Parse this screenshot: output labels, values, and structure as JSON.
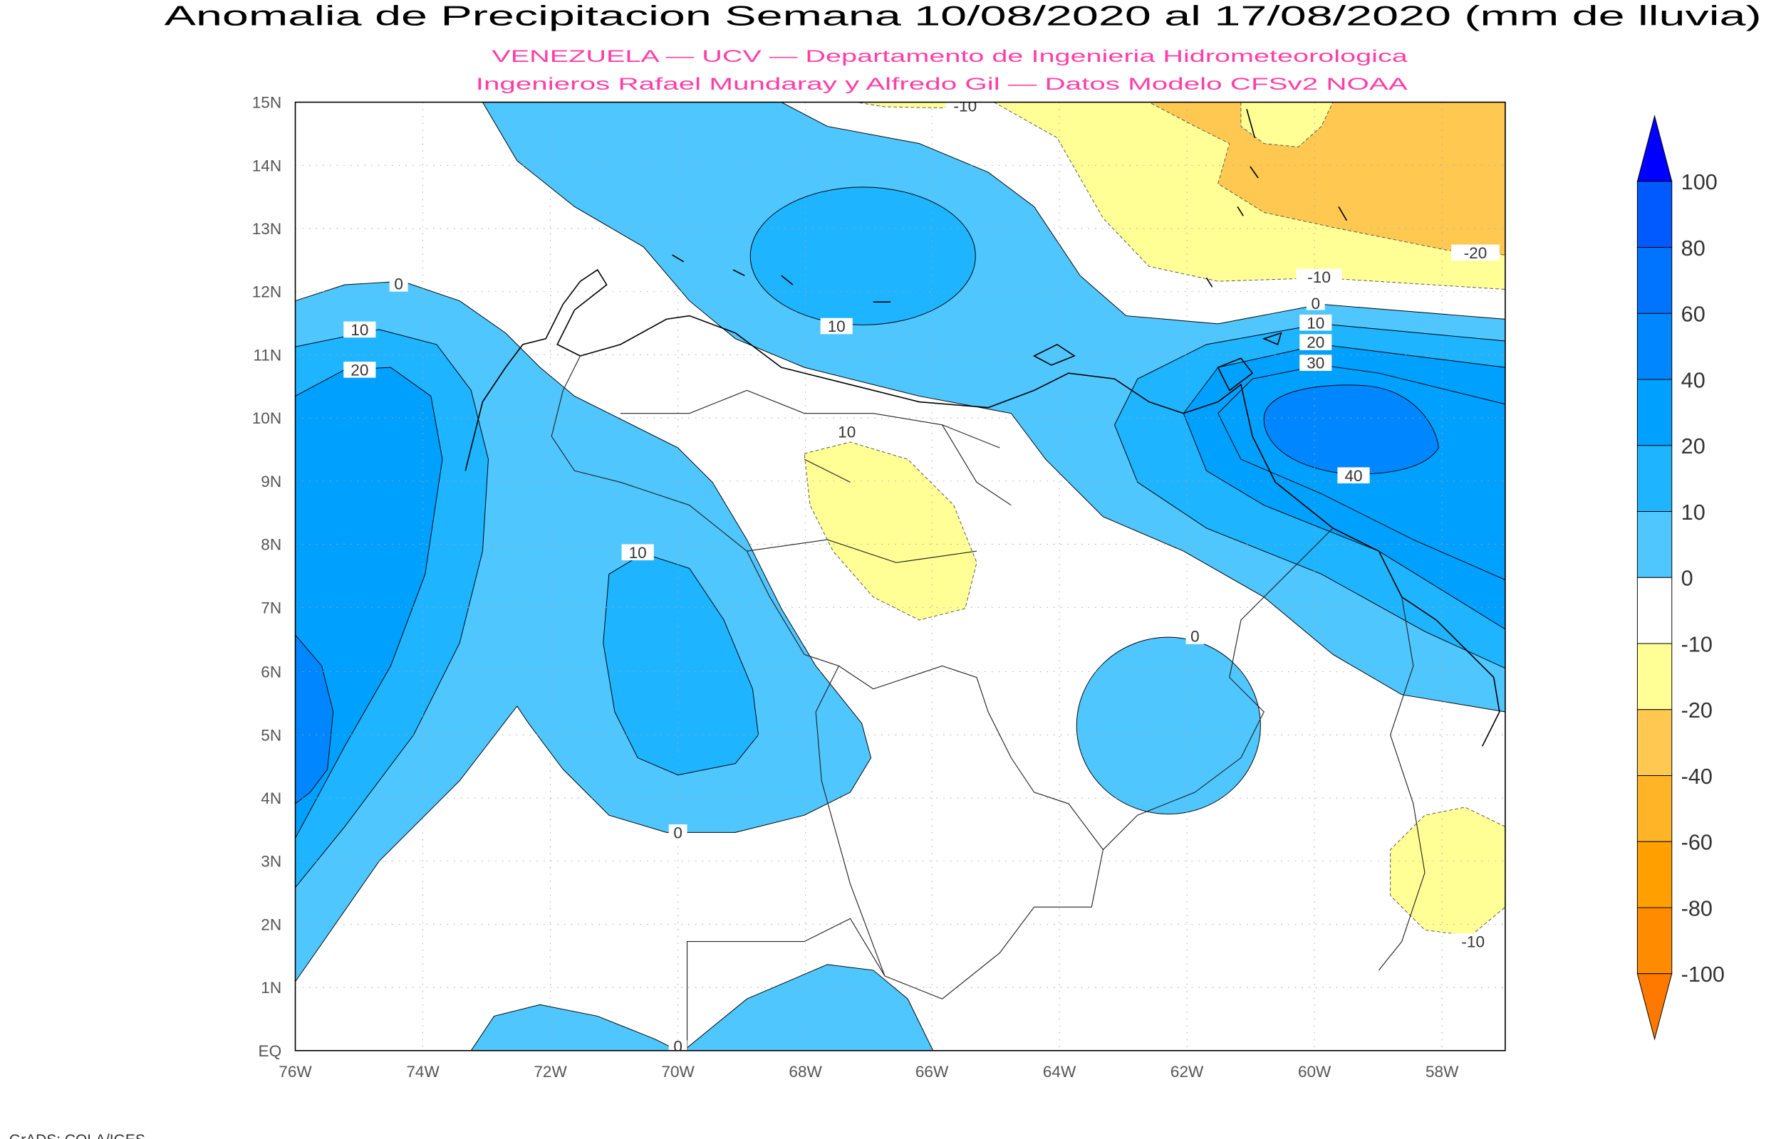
{
  "title": "Anomalia de Precipitacion Semana 10/08/2020 al 17/08/2020 (mm de lluvia)",
  "subtitle_line1": "VENEZUELA — UCV — Departamento de Ingenieria Hidrometeorologica",
  "subtitle_line2": "Ingenieros Rafael Mundaray y Alfredo Gil — Datos Modelo CFSv2 NOAA",
  "footer": "GrADS: COLA/IGES",
  "map": {
    "variable": "Precipitation anomaly (mm)",
    "lon_range": [
      -76,
      -57
    ],
    "lat_range": [
      0,
      15
    ],
    "lat_ticks": [
      "15N",
      "14N",
      "13N",
      "12N",
      "11N",
      "10N",
      "9N",
      "8N",
      "7N",
      "6N",
      "5N",
      "4N",
      "3N",
      "2N",
      "1N",
      "EQ"
    ],
    "lon_ticks": [
      "76W",
      "74W",
      "72W",
      "70W",
      "68W",
      "66W",
      "64W",
      "62W",
      "60W",
      "58W"
    ],
    "contour_labels": [
      "0",
      "10",
      "20",
      "10",
      "-10",
      "10",
      "10",
      "0",
      "0",
      "0",
      "40",
      "0",
      "10",
      "20",
      "30",
      "-10",
      "-20",
      "-10"
    ]
  },
  "colorbar": {
    "labels": [
      "100",
      "80",
      "60",
      "40",
      "20",
      "10",
      "0",
      "-10",
      "-20",
      "-40",
      "-60",
      "-80",
      "-100"
    ],
    "colors": [
      "#0000ff",
      "#005aff",
      "#0073ff",
      "#0087ff",
      "#00a0ff",
      "#1eb4ff",
      "#50c6ff",
      "#ffffff",
      "#ffff96",
      "#ffc850",
      "#ffb428",
      "#ffa000",
      "#ff8c00",
      "#ff7800"
    ]
  }
}
